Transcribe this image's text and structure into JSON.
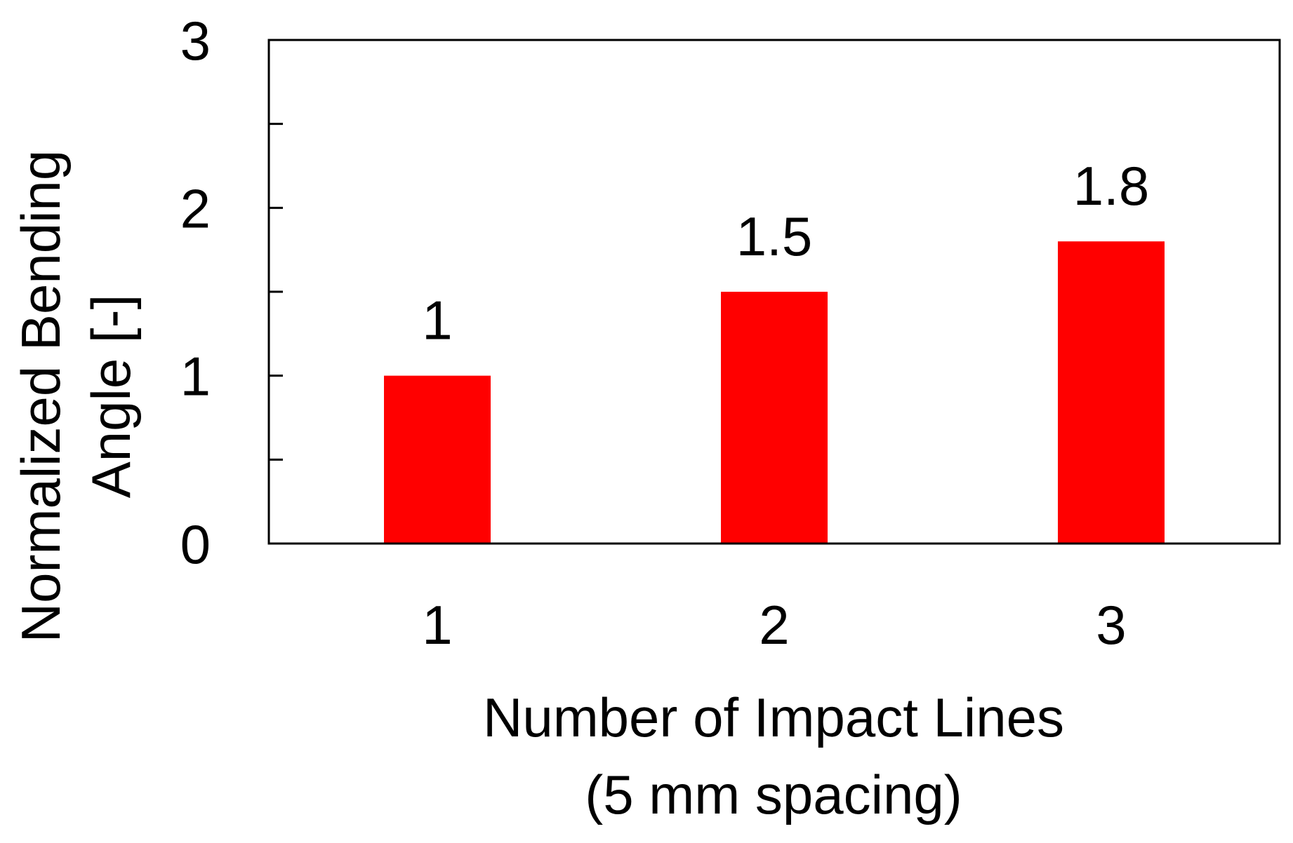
{
  "chart_data": {
    "type": "bar",
    "categories": [
      "1",
      "2",
      "3"
    ],
    "values": [
      1,
      1.5,
      1.8
    ],
    "data_labels": [
      "1",
      "1.5",
      "1.8"
    ],
    "title": "",
    "xlabel": [
      "Number of Impact Lines",
      "(5 mm spacing)"
    ],
    "ylabel": [
      "Normalized Bending",
      "Angle [-]"
    ],
    "ylim": [
      0,
      3
    ],
    "y_major_ticks": [
      0,
      1,
      2,
      3
    ],
    "y_minor_ticks": [
      0.5,
      1.5,
      2.5
    ],
    "grid": false,
    "legend": "none",
    "bar_color": "#ff0000"
  }
}
